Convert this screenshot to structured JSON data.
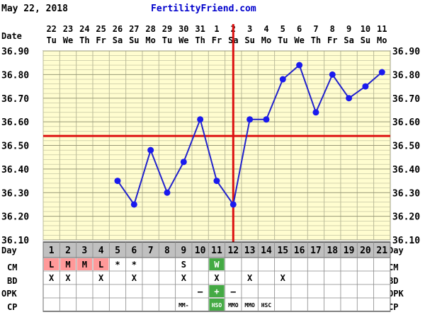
{
  "header": {
    "date": "May 22, 2018",
    "site": "FertilityFriend.com"
  },
  "colors": {
    "grid_bg": "#fffdd0",
    "grid_line": "#bbbb99",
    "line": "#2222cc",
    "point": "#1a1aee",
    "coverline": "#dd1111",
    "ovulation": "#dd1111",
    "day_row_bg": "#c0c0c0",
    "menses": "#ff9999",
    "green_cell": "#44aa44"
  },
  "labels": {
    "date": "Date",
    "day": "Day",
    "cm": "CM",
    "bd": "BD",
    "opk": "OPK",
    "cp": "CP"
  },
  "chart_data": {
    "type": "line",
    "dates": [
      "22",
      "23",
      "24",
      "25",
      "26",
      "27",
      "28",
      "29",
      "30",
      "31",
      "1",
      "2",
      "3",
      "4",
      "5",
      "6",
      "7",
      "8",
      "9",
      "10",
      "11"
    ],
    "weekdays": [
      "Tu",
      "We",
      "Th",
      "Fr",
      "Sa",
      "Su",
      "Mo",
      "Tu",
      "We",
      "Th",
      "Fr",
      "Sa",
      "Su",
      "Mo",
      "Tu",
      "We",
      "Th",
      "Fr",
      "Sa",
      "Su",
      "Mo"
    ],
    "days": [
      "1",
      "2",
      "3",
      "4",
      "5",
      "6",
      "7",
      "8",
      "9",
      "10",
      "11",
      "12",
      "13",
      "14",
      "15",
      "16",
      "17",
      "18",
      "19",
      "20",
      "21"
    ],
    "temperatures": [
      null,
      null,
      null,
      null,
      36.35,
      36.25,
      36.48,
      36.3,
      36.43,
      36.61,
      36.35,
      36.25,
      36.61,
      36.61,
      36.78,
      36.84,
      36.64,
      36.8,
      36.7,
      36.75,
      36.81
    ],
    "yticks": [
      "36.90",
      "36.80",
      "36.70",
      "36.60",
      "36.50",
      "36.40",
      "36.30",
      "36.20",
      "36.10"
    ],
    "ylim": [
      36.1,
      36.9
    ],
    "coverline": 36.54,
    "ovulation_day": 12,
    "grid": true
  },
  "rows": {
    "cm": [
      "L",
      "M",
      "M",
      "L",
      "*",
      "*",
      "",
      "",
      "S",
      "",
      "W",
      "",
      "",
      "",
      "",
      "",
      "",
      "",
      "",
      "",
      ""
    ],
    "bd": [
      "X",
      "X",
      "",
      "X",
      "",
      "X",
      "",
      "",
      "X",
      "",
      "X",
      "",
      "X",
      "",
      "X",
      "",
      "",
      "",
      "",
      "",
      ""
    ],
    "opk": [
      "",
      "",
      "",
      "",
      "",
      "",
      "",
      "",
      "",
      "–",
      "+",
      "–",
      "",
      "",
      "",
      "",
      "",
      "",
      "",
      "",
      ""
    ],
    "cp": [
      "",
      "",
      "",
      "",
      "",
      "",
      "",
      "",
      "MM-",
      "",
      "HSO",
      "MMO",
      "MMO",
      "HSC",
      "",
      "",
      "",
      "",
      "",
      "",
      ""
    ]
  },
  "row_styles": {
    "cm_menses_days": [
      1,
      2,
      3,
      4
    ],
    "green_cells": [
      {
        "row": "cm",
        "day": 11
      },
      {
        "row": "opk",
        "day": 11
      },
      {
        "row": "cp",
        "day": 11
      }
    ]
  }
}
